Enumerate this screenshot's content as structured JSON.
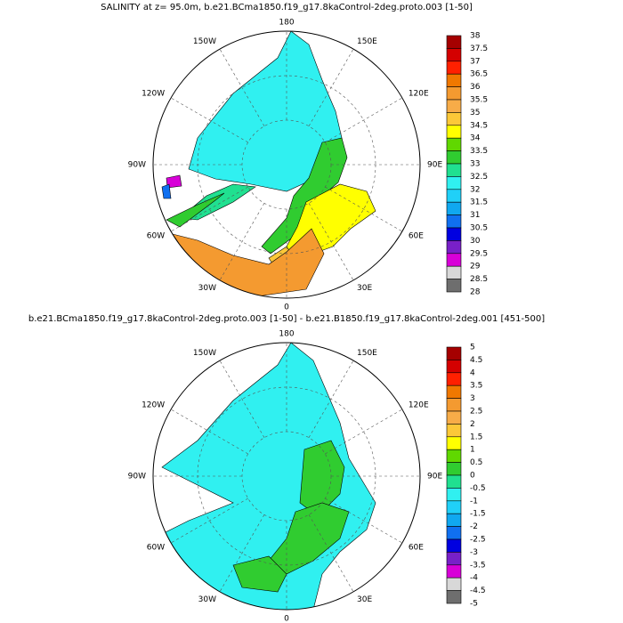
{
  "panels": [
    {
      "title": "SALINITY at z=  95.0m, b.e21.BCma1850.f19_g17.8kaControl-2deg.proto.003 [1-50]",
      "lon_labels": [
        "180",
        "150E",
        "120E",
        "90E",
        "60E",
        "30E",
        "0",
        "30W",
        "60W",
        "90W",
        "120W",
        "150W"
      ],
      "colorbar": {
        "labels": [
          "38",
          "37.5",
          "37",
          "36.5",
          "36",
          "35.5",
          "35",
          "34.5",
          "34",
          "33.5",
          "33",
          "32.5",
          "32",
          "31.5",
          "31",
          "30.5",
          "30",
          "29.5",
          "29",
          "28.5",
          "28"
        ],
        "colors": [
          "#a50000",
          "#d40000",
          "#ff2000",
          "#f07800",
          "#f49a30",
          "#f7ac48",
          "#fcc838",
          "#ffff00",
          "#60d800",
          "#30cc30",
          "#20e090",
          "#30f0f0",
          "#20d0f8",
          "#10a8f0",
          "#1070f0",
          "#0000e0",
          "#7820c8",
          "#d800d8",
          "#d8d8d8",
          "#6e6e6e"
        ]
      }
    },
    {
      "title": "b.e21.BCma1850.f19_g17.8kaControl-2deg.proto.003 [1-50] - b.e21.B1850.f19_g17.8kaControl-2deg.001 [451-500]",
      "lon_labels": [
        "180",
        "150E",
        "120E",
        "90E",
        "60E",
        "30E",
        "0",
        "30W",
        "60W",
        "90W",
        "120W",
        "150W"
      ],
      "colorbar": {
        "labels": [
          "5",
          "4.5",
          "4",
          "3.5",
          "3",
          "2.5",
          "2",
          "1.5",
          "1",
          "0.5",
          "0",
          "-0.5",
          "-1",
          "-1.5",
          "-2",
          "-2.5",
          "-3",
          "-3.5",
          "-4",
          "-4.5",
          "-5"
        ],
        "colors": [
          "#a50000",
          "#d40000",
          "#ff2000",
          "#f07800",
          "#f49a30",
          "#f7ac48",
          "#fcc838",
          "#ffff00",
          "#60d800",
          "#30cc30",
          "#20e090",
          "#30f0f0",
          "#20d0f8",
          "#10a8f0",
          "#1070f0",
          "#0000e0",
          "#7820c8",
          "#d800d8",
          "#d8d8d8",
          "#6e6e6e"
        ]
      }
    }
  ]
}
